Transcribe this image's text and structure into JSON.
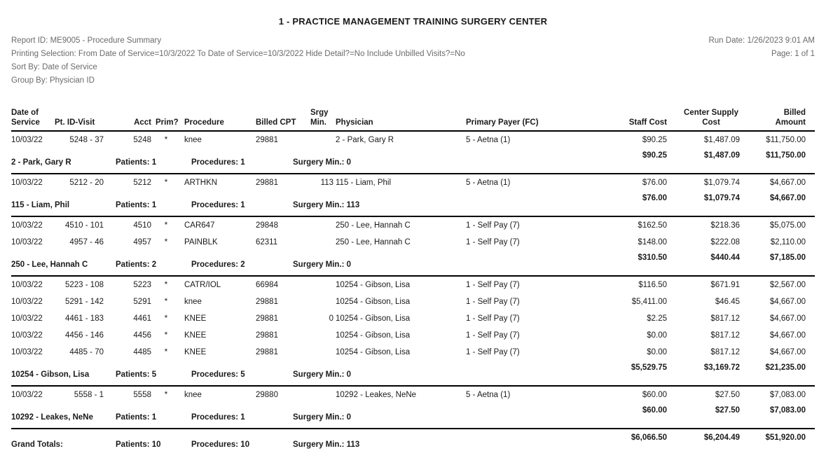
{
  "page": {
    "title": "1 - PRACTICE MANAGEMENT TRAINING SURGERY CENTER",
    "meta_left": [
      "Report ID: ME9005 - Procedure Summary",
      "Printing Selection: From Date of Service=10/3/2022 To Date of Service=10/3/2022 Hide Detail?=No Include Unbilled Visits?=No",
      "Sort By: Date of Service",
      "Group By: Physician ID"
    ],
    "meta_right": [
      "Run Date: 1/26/2023 9:01 AM",
      "Page: 1 of 1"
    ]
  },
  "table": {
    "headers": {
      "date_line1": "Date of",
      "date_line2": "Service",
      "pt": "Pt. ID-Visit",
      "acct": "Acct",
      "prim": "Prim?",
      "proc": "Procedure",
      "cpt": "Billed CPT",
      "srgy_line1": "Srgy",
      "srgy_line2": "Min.",
      "phys": "Physician",
      "payer": "Primary Payer (FC)",
      "staff": "Staff Cost",
      "supply_line1": "Center Supply",
      "supply_line2": "Cost",
      "billed_line1": "Billed",
      "billed_line2": "Amount"
    },
    "groups": [
      {
        "rows": [
          {
            "date": "10/03/22",
            "pt": "5248 - 37",
            "acct": "5248",
            "prim": "*",
            "proc": "knee",
            "cpt": "29881",
            "srgy": "",
            "phys": "2 - Park, Gary R",
            "payer": "5 - Aetna (1)",
            "staff": "$90.25",
            "supply": "$1,487.09",
            "billed": "$11,750.00"
          }
        ],
        "subtotal": {
          "name": "2 - Park, Gary R",
          "patients": "Patients: 1",
          "procedures": "Procedures: 1",
          "surgery": "Surgery Min.: 0",
          "staff": "$90.25",
          "supply": "$1,487.09",
          "billed": "$11,750.00"
        }
      },
      {
        "rows": [
          {
            "date": "10/03/22",
            "pt": "5212 - 20",
            "acct": "5212",
            "prim": "*",
            "proc": "ARTHKN",
            "cpt": "29881",
            "srgy": "113",
            "phys": "115 - Liam, Phil",
            "payer": "5 - Aetna (1)",
            "staff": "$76.00",
            "supply": "$1,079.74",
            "billed": "$4,667.00"
          }
        ],
        "subtotal": {
          "name": "115 - Liam, Phil",
          "patients": "Patients: 1",
          "procedures": "Procedures: 1",
          "surgery": "Surgery Min.: 113",
          "staff": "$76.00",
          "supply": "$1,079.74",
          "billed": "$4,667.00"
        }
      },
      {
        "rows": [
          {
            "date": "10/03/22",
            "pt": "4510 - 101",
            "acct": "4510",
            "prim": "*",
            "proc": "CAR647",
            "cpt": "29848",
            "srgy": "",
            "phys": "250 - Lee, Hannah C",
            "payer": "1 - Self Pay (7)",
            "staff": "$162.50",
            "supply": "$218.36",
            "billed": "$5,075.00"
          },
          {
            "date": "10/03/22",
            "pt": "4957 - 46",
            "acct": "4957",
            "prim": "*",
            "proc": "PAINBLK",
            "cpt": "62311",
            "srgy": "",
            "phys": "250 - Lee, Hannah C",
            "payer": "1 - Self Pay (7)",
            "staff": "$148.00",
            "supply": "$222.08",
            "billed": "$2,110.00"
          }
        ],
        "subtotal": {
          "name": "250 - Lee, Hannah C",
          "patients": "Patients: 2",
          "procedures": "Procedures: 2",
          "surgery": "Surgery Min.: 0",
          "staff": "$310.50",
          "supply": "$440.44",
          "billed": "$7,185.00"
        }
      },
      {
        "rows": [
          {
            "date": "10/03/22",
            "pt": "5223 - 108",
            "acct": "5223",
            "prim": "*",
            "proc": "CATR/IOL",
            "cpt": "66984",
            "srgy": "",
            "phys": "10254 - Gibson, Lisa",
            "payer": "1 - Self Pay (7)",
            "staff": "$116.50",
            "supply": "$671.91",
            "billed": "$2,567.00"
          },
          {
            "date": "10/03/22",
            "pt": "5291 - 142",
            "acct": "5291",
            "prim": "*",
            "proc": "knee",
            "cpt": "29881",
            "srgy": "",
            "phys": "10254 - Gibson, Lisa",
            "payer": "1 - Self Pay (7)",
            "staff": "$5,411.00",
            "supply": "$46.45",
            "billed": "$4,667.00"
          },
          {
            "date": "10/03/22",
            "pt": "4461 - 183",
            "acct": "4461",
            "prim": "*",
            "proc": "KNEE",
            "cpt": "29881",
            "srgy": "0",
            "phys": "10254 - Gibson, Lisa",
            "payer": "1 - Self Pay (7)",
            "staff": "$2.25",
            "supply": "$817.12",
            "billed": "$4,667.00"
          },
          {
            "date": "10/03/22",
            "pt": "4456 - 146",
            "acct": "4456",
            "prim": "*",
            "proc": "KNEE",
            "cpt": "29881",
            "srgy": "",
            "phys": "10254 - Gibson, Lisa",
            "payer": "1 - Self Pay (7)",
            "staff": "$0.00",
            "supply": "$817.12",
            "billed": "$4,667.00"
          },
          {
            "date": "10/03/22",
            "pt": "4485 - 70",
            "acct": "4485",
            "prim": "*",
            "proc": "KNEE",
            "cpt": "29881",
            "srgy": "",
            "phys": "10254 - Gibson, Lisa",
            "payer": "1 - Self Pay (7)",
            "staff": "$0.00",
            "supply": "$817.12",
            "billed": "$4,667.00"
          }
        ],
        "subtotal": {
          "name": "10254 - Gibson, Lisa",
          "patients": "Patients: 5",
          "procedures": "Procedures: 5",
          "surgery": "Surgery Min.: 0",
          "staff": "$5,529.75",
          "supply": "$3,169.72",
          "billed": "$21,235.00"
        }
      },
      {
        "rows": [
          {
            "date": "10/03/22",
            "pt": "5558 - 1",
            "acct": "5558",
            "prim": "*",
            "proc": "knee",
            "cpt": "29880",
            "srgy": "",
            "phys": "10292 - Leakes, NeNe",
            "payer": "5 - Aetna (1)",
            "staff": "$60.00",
            "supply": "$27.50",
            "billed": "$7,083.00"
          }
        ],
        "subtotal": {
          "name": "10292 - Leakes, NeNe",
          "patients": "Patients: 1",
          "procedures": "Procedures: 1",
          "surgery": "Surgery Min.: 0",
          "staff": "$60.00",
          "supply": "$27.50",
          "billed": "$7,083.00"
        }
      }
    ],
    "grand_total": {
      "name": "Grand Totals:",
      "patients": "Patients: 10",
      "procedures": "Procedures: 10",
      "surgery": "Surgery Min.: 113",
      "staff": "$6,066.50",
      "supply": "$6,204.49",
      "billed": "$51,920.00"
    }
  }
}
